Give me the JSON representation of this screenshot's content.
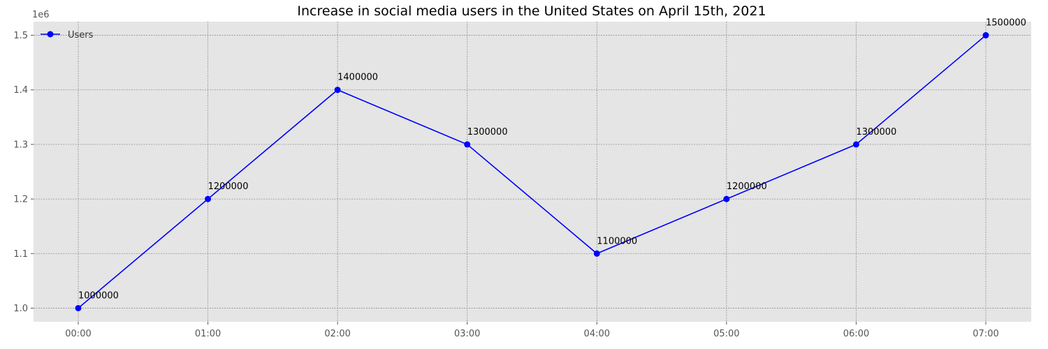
{
  "chart_data": {
    "type": "line",
    "title": "Increase in social media users in the United States on April 15th, 2021",
    "xlabel": "",
    "ylabel": "",
    "x": [
      "00:00",
      "01:00",
      "02:00",
      "03:00",
      "04:00",
      "05:00",
      "06:00",
      "07:00"
    ],
    "series": [
      {
        "name": "Users",
        "values": [
          1000000,
          1200000,
          1400000,
          1300000,
          1100000,
          1200000,
          1300000,
          1500000
        ],
        "color": "#0000ff"
      }
    ],
    "data_labels": [
      "1000000",
      "1200000",
      "1400000",
      "1300000",
      "1100000",
      "1200000",
      "1300000",
      "1500000"
    ],
    "ylim": [
      975000,
      1525000
    ],
    "yticks": [
      1000000,
      1100000,
      1200000,
      1300000,
      1400000,
      1500000
    ],
    "ytick_labels": [
      "1.0",
      "1.1",
      "1.2",
      "1.3",
      "1.4",
      "1.5"
    ],
    "y_scale_label": "1e6",
    "grid": true,
    "legend": {
      "position": "top-left",
      "entries": [
        "Users"
      ]
    },
    "colors": {
      "plot_background": "#e5e5e5",
      "grid": "#8f8f8f",
      "line": "#0000ff"
    }
  }
}
